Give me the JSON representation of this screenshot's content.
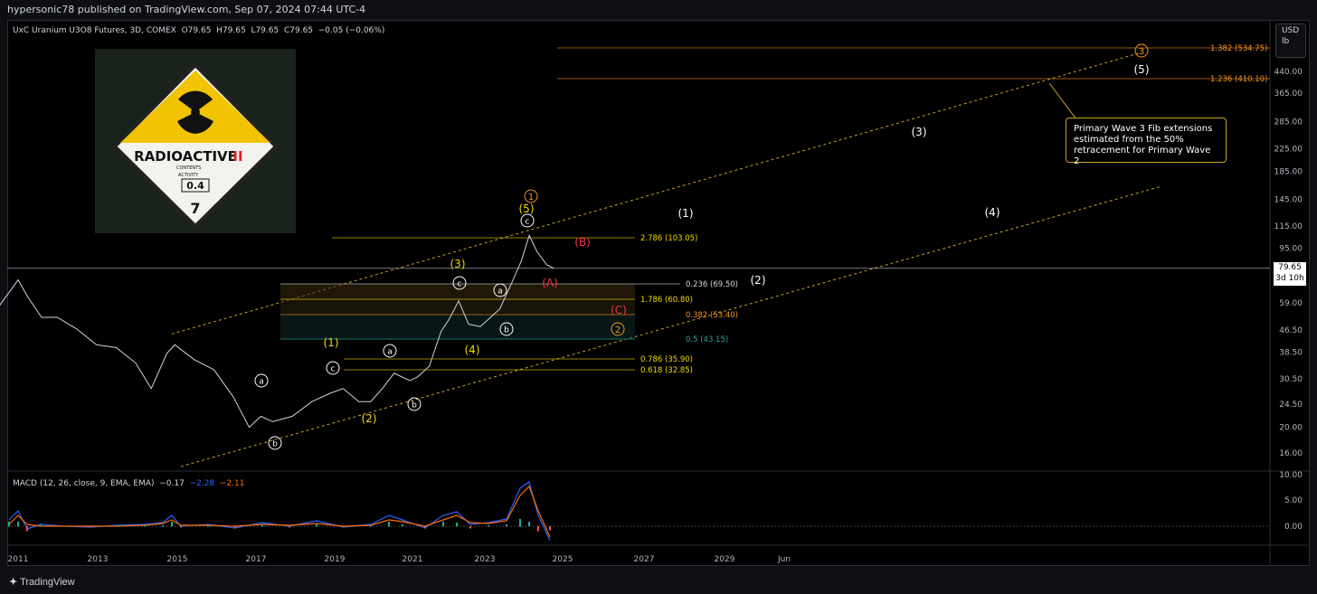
{
  "header": {
    "published": "hypersonic78 published on TradingView.com, Sep 07, 2024 07:44 UTC-4"
  },
  "legend": {
    "symbol": "UxC Uranium U3O8 Futures, 3D, COMEX",
    "o_label": "O",
    "o": "79.65",
    "h_label": "H",
    "h": "79.65",
    "l_label": "L",
    "l": "79.65",
    "c_label": "C",
    "c": "79.65",
    "change": "−0.05 (−0.06%)"
  },
  "unit": {
    "currency": "USD",
    "measure": "lb"
  },
  "last_price": {
    "value": "79.65",
    "countdown": "3d 10h"
  },
  "macd_legend": {
    "label": "MACD (12, 26, close, 9, EMA, EMA)",
    "v1": "−0.17",
    "v2": "−2.28",
    "v3": "−2.11"
  },
  "note": {
    "text": "Primary Wave 3 Fib extensions estimated from the 50% retracement for Primary Wave 2"
  },
  "image": {
    "title": "RADIOACTIVE",
    "roman": "II",
    "contents": "CONTENTS",
    "activity": "ACTIVITY",
    "index": "0.4",
    "class_num": "7"
  },
  "footer": {
    "brand": "TradingView"
  },
  "colors": {
    "bg": "#000000",
    "price": "#d1d4dc",
    "fib_yellow": "#f5d800",
    "fib_orange": "#f7931a",
    "fib_teal": "#26a69a",
    "wave_red": "#f23645",
    "macd": "#2962ff",
    "signal": "#ff6d00"
  },
  "chart_data": {
    "type": "line",
    "y_scale": "log",
    "yaxis_ticks": [
      "440.00",
      "365.00",
      "285.00",
      "225.00",
      "185.00",
      "145.00",
      "115.00",
      "95.00",
      "79.65",
      "59.00",
      "46.50",
      "38.50",
      "30.50",
      "24.50",
      "20.00",
      "16.00"
    ],
    "xaxis_ticks": [
      "2011",
      "2013",
      "2015",
      "2017",
      "2019",
      "2021",
      "2023",
      "2025",
      "2027",
      "2029",
      "Jun"
    ],
    "macd_ticks": [
      "10.00",
      "5.00",
      "0.00"
    ],
    "series": [
      {
        "x": [
          2010.0,
          2011.0,
          2011.25,
          2011.6,
          2012.0,
          2012.5,
          2013.0,
          2013.5,
          2014.0,
          2014.4,
          2014.8,
          2015.0,
          2015.5,
          2016.0,
          2016.5,
          2016.9,
          2017.2,
          2017.5,
          2018.0,
          2018.5,
          2019.0,
          2019.3,
          2019.7,
          2020.0,
          2020.3,
          2020.6,
          2021.0,
          2021.2,
          2021.5,
          2021.8,
          2022.0,
          2022.25,
          2022.5,
          2022.8,
          2023.0,
          2023.3,
          2023.6,
          2023.85,
          2024.05,
          2024.25,
          2024.5,
          2024.68
        ],
        "y": [
          45,
          72,
          62,
          52,
          52,
          47,
          41,
          40,
          35,
          28,
          38,
          41,
          36,
          33,
          26,
          20,
          22,
          21,
          22,
          25,
          27,
          28,
          25,
          25,
          28,
          32,
          30,
          31,
          34,
          46,
          51,
          60,
          49,
          48,
          51,
          56,
          70,
          85,
          106,
          92,
          82,
          79.65
        ]
      }
    ],
    "fib_levels": [
      {
        "label": "2.786 (103.05)",
        "color": "#f5d800"
      },
      {
        "label": "1.786 (60.80)",
        "color": "#f5d800"
      },
      {
        "label": "0.382 (53.40)",
        "color": "#f7931a"
      },
      {
        "label": "0.5 (43.15)",
        "color": "#26a69a"
      },
      {
        "label": "0.786 (35.90)",
        "color": "#f5d800"
      },
      {
        "label": "0.618 (32.85)",
        "color": "#f5d800"
      },
      {
        "label": "0.236 (69.50)",
        "color": "#d1d4dc"
      },
      {
        "label": "1.382 (534.75)",
        "color": "#f7931a"
      },
      {
        "label": "1.236 (410.10)",
        "color": "#f7931a"
      }
    ],
    "wave_labels": {
      "white": [
        "(1)",
        "(2)",
        "(3)",
        "(4)",
        "(5)"
      ],
      "yellow": [
        "(1)",
        "(2)",
        "(3)",
        "(4)",
        "(5)"
      ],
      "red": [
        "(A)",
        "(B)",
        "(C)"
      ],
      "circled_orange": [
        "1",
        "2",
        "3"
      ],
      "circled_white": [
        "a",
        "b",
        "c",
        "a",
        "b",
        "c",
        "a",
        "b",
        "c"
      ]
    }
  }
}
